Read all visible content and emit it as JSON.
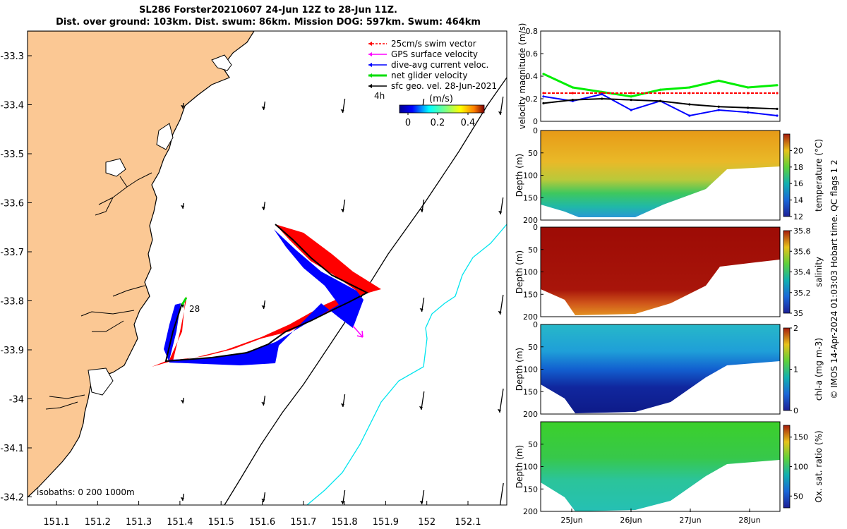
{
  "title": {
    "line1": "SL286 Forster20210607 24-Jun 12Z to 28-Jun 11Z.",
    "line2": "Dist. over ground: 103km. Dist. swum: 86km. Mission DOG: 597km. Swum: 464km"
  },
  "map": {
    "lat_ticks": [
      "-33.3",
      "-33.4",
      "-33.5",
      "-33.6",
      "-33.7",
      "-33.8",
      "-33.9",
      "-34",
      "-34.1",
      "-34.2"
    ],
    "lon_ticks": [
      "151.1",
      "151.2",
      "151.3",
      "151.4",
      "151.5",
      "151.6",
      "151.7",
      "151.8",
      "151.9",
      "152",
      "152.1"
    ],
    "legend": [
      {
        "label": "25cm/s swim vector",
        "color": "#ff0000"
      },
      {
        "label": "GPS surface velocity",
        "color": "#ff00ff"
      },
      {
        "label": "dive-avg current veloc.",
        "color": "#0000ff"
      },
      {
        "label": "net glider velocity",
        "color": "#00dd00"
      },
      {
        "label": "sfc geo. vel. 28-Jun-2021",
        "color": "#000000"
      }
    ],
    "colorbar": {
      "time_label": "4h",
      "unit": "(m/s)",
      "ticks": [
        "0",
        "0.2",
        "0.4"
      ]
    },
    "isobaths_label": "isobaths: 0   200  1000m",
    "track_label": "28",
    "colors": {
      "land": "#fbc894",
      "isobath_200": "#000000",
      "isobath_1000": "#00e5ee"
    }
  },
  "chart_data": [
    {
      "type": "line",
      "ylabel": "velocity magnitude (m/s)",
      "ylim": [
        0,
        0.8
      ],
      "yticks": [
        "0",
        "0.2",
        "0.4",
        "0.6",
        "0.8"
      ],
      "x": [
        "24-Jun 12Z",
        "25-Jun",
        "25-Jun 12Z",
        "26-Jun",
        "26-Jun 12Z",
        "27-Jun",
        "27-Jun 12Z",
        "28-Jun",
        "28-Jun 11Z"
      ],
      "series": [
        {
          "color": "#00ee00",
          "values": [
            0.42,
            0.3,
            0.26,
            0.22,
            0.28,
            0.3,
            0.36,
            0.3,
            0.32
          ]
        },
        {
          "color": "#ff0000",
          "values": [
            0.25,
            0.25,
            0.25,
            0.25,
            0.25,
            0.25,
            0.25,
            0.25,
            0.25
          ]
        },
        {
          "color": "#0000ff",
          "values": [
            0.22,
            0.18,
            0.24,
            0.1,
            0.18,
            0.05,
            0.1,
            0.08,
            0.05
          ]
        },
        {
          "color": "#000000",
          "values": [
            0.16,
            0.19,
            0.2,
            0.19,
            0.18,
            0.15,
            0.13,
            0.12,
            0.11
          ]
        }
      ]
    },
    {
      "type": "heatmap",
      "ylabel": "Depth (m)",
      "yticks": [
        "0",
        "50",
        "100",
        "150",
        "200"
      ],
      "cbar_label": "temperature (°C)",
      "cbar_ticks": [
        "12",
        "14",
        "16",
        "18",
        "20"
      ],
      "range": [
        12,
        22
      ]
    },
    {
      "type": "heatmap",
      "ylabel": "Depth (m)",
      "yticks": [
        "0",
        "50",
        "100",
        "150",
        "200"
      ],
      "cbar_label": "salinity",
      "cbar_ticks": [
        "35",
        "35.2",
        "35.4",
        "35.6",
        "35.8"
      ],
      "range": [
        35,
        35.8
      ]
    },
    {
      "type": "heatmap",
      "ylabel": "Depth (m)",
      "yticks": [
        "0",
        "50",
        "100",
        "150",
        "200"
      ],
      "cbar_label": "chl-a (mg m-3)",
      "cbar_ticks": [
        "0",
        "1",
        "2"
      ],
      "range": [
        0,
        2
      ]
    },
    {
      "type": "heatmap",
      "ylabel": "Depth (m)",
      "yticks": [
        "50",
        "100",
        "150",
        "200"
      ],
      "cbar_label": "Ox. sat. ratio (%)",
      "cbar_ticks": [
        "50",
        "100",
        "150"
      ],
      "range": [
        30,
        170
      ]
    }
  ],
  "time_axis": [
    "25Jun",
    "26Jun",
    "27Jun",
    "28Jun"
  ],
  "side_note": "© IMOS 14-Apr-2024 01:03:03 Hobart time. QC flags 1  2"
}
